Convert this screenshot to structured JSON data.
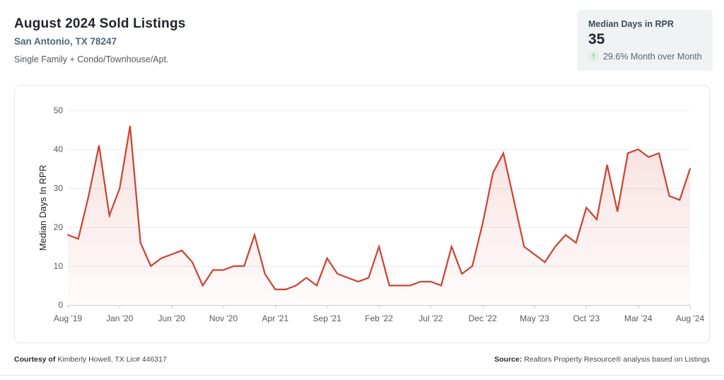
{
  "header": {
    "title": "August 2024 Sold Listings",
    "location": "San Antonio, TX 78247",
    "property_types": "Single Family + Condo/Townhouse/Apt."
  },
  "stat_card": {
    "label": "Median Days in RPR",
    "value": "35",
    "trend_icon": "up-arrow",
    "trend_glyph": "↑",
    "trend_color": "#23a567",
    "change_text": "29.6% Month over Month"
  },
  "footer": {
    "courtesy_label": "Courtesy of",
    "courtesy_text": "Kimberly Howell, TX Lic# 446317",
    "source_label": "Source:",
    "source_text": "Realtors Property Resource® analysis based on Listings"
  },
  "chart_data": {
    "type": "area",
    "title": "August 2024 Sold Listings — Median Days in RPR",
    "xlabel": "",
    "ylabel": "Median Days In RPR",
    "ylim": [
      0,
      50
    ],
    "ytick_interval": 10,
    "ytick_labels": [
      "0",
      "10",
      "20",
      "30",
      "40",
      "50"
    ],
    "grid": true,
    "legend": "none",
    "line_color": "#cc4433",
    "fill_top_color": "rgba(204,68,51,0.18)",
    "fill_bottom_color": "rgba(204,68,51,0.02)",
    "xtick_labels": [
      "Aug '19",
      "Jan '20",
      "Jun '20",
      "Nov '20",
      "Apr '21",
      "Sep '21",
      "Feb '22",
      "Jul '22",
      "Dec '22",
      "May '23",
      "Oct '23",
      "Mar '24",
      "Aug '24"
    ],
    "xtick_indices": [
      0,
      5,
      10,
      15,
      20,
      25,
      30,
      35,
      40,
      45,
      50,
      55,
      60
    ],
    "months": [
      "Aug '19",
      "Sep '19",
      "Oct '19",
      "Nov '19",
      "Dec '19",
      "Jan '20",
      "Feb '20",
      "Mar '20",
      "Apr '20",
      "May '20",
      "Jun '20",
      "Jul '20",
      "Aug '20",
      "Sep '20",
      "Oct '20",
      "Nov '20",
      "Dec '20",
      "Jan '21",
      "Feb '21",
      "Mar '21",
      "Apr '21",
      "May '21",
      "Jun '21",
      "Jul '21",
      "Aug '21",
      "Sep '21",
      "Oct '21",
      "Nov '21",
      "Dec '21",
      "Jan '22",
      "Feb '22",
      "Mar '22",
      "Apr '22",
      "May '22",
      "Jun '22",
      "Jul '22",
      "Aug '22",
      "Sep '22",
      "Oct '22",
      "Nov '22",
      "Dec '22",
      "Jan '23",
      "Feb '23",
      "Mar '23",
      "Apr '23",
      "May '23",
      "Jun '23",
      "Jul '23",
      "Aug '23",
      "Sep '23",
      "Oct '23",
      "Nov '23",
      "Dec '23",
      "Jan '24",
      "Feb '24",
      "Mar '24",
      "Apr '24",
      "May '24",
      "Jun '24",
      "Jul '24",
      "Aug '24"
    ],
    "values": [
      18,
      17,
      28,
      41,
      23,
      30,
      46,
      16,
      10,
      12,
      13,
      14,
      11,
      5,
      9,
      9,
      10,
      10,
      18,
      8,
      4,
      4,
      5,
      7,
      5,
      12,
      8,
      7,
      6,
      7,
      15,
      5,
      5,
      5,
      6,
      6,
      5,
      15,
      8,
      10,
      21,
      34,
      39,
      27,
      15,
      13,
      11,
      15,
      18,
      16,
      25,
      22,
      36,
      24,
      39,
      40,
      38,
      39,
      28,
      27,
      35
    ]
  }
}
